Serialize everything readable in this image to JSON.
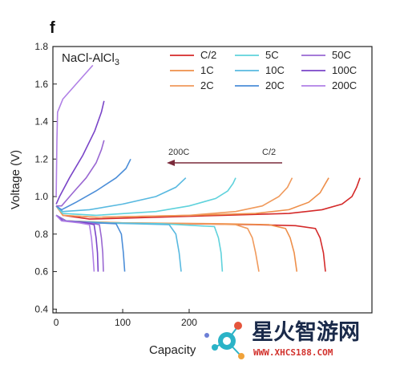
{
  "panel_label": "f",
  "material_label": "NaCl-AlCl",
  "material_sub": "3",
  "chart_data": {
    "type": "line",
    "title": "",
    "xlabel": "Capacity",
    "ylabel": "Voltage (V)",
    "xlim": [
      -5,
      475
    ],
    "ylim": [
      0.38,
      1.8
    ],
    "xticks": [
      0,
      100,
      200
    ],
    "yticks": [
      0.4,
      0.6,
      0.8,
      1.0,
      1.2,
      1.4,
      1.6,
      1.8
    ],
    "legend_position": "top-right",
    "annotation": {
      "from_label": "C/2",
      "to_label": "200C",
      "arrow_y": 1.18
    },
    "series": [
      {
        "name": "C/2",
        "color": "#d42a2a",
        "charge": [
          [
            0,
            0.95
          ],
          [
            10,
            0.9
          ],
          [
            50,
            0.88
          ],
          [
            150,
            0.89
          ],
          [
            250,
            0.9
          ],
          [
            350,
            0.91
          ],
          [
            400,
            0.93
          ],
          [
            430,
            0.96
          ],
          [
            445,
            1.0
          ],
          [
            452,
            1.05
          ],
          [
            457,
            1.1
          ]
        ],
        "discharge": [
          [
            0,
            0.9
          ],
          [
            15,
            0.87
          ],
          [
            80,
            0.86
          ],
          [
            200,
            0.855
          ],
          [
            300,
            0.85
          ],
          [
            360,
            0.845
          ],
          [
            390,
            0.83
          ],
          [
            397,
            0.78
          ],
          [
            402,
            0.7
          ],
          [
            405,
            0.6
          ]
        ]
      },
      {
        "name": "1C",
        "color": "#ee8f4a",
        "charge": [
          [
            0,
            0.95
          ],
          [
            10,
            0.9
          ],
          [
            60,
            0.89
          ],
          [
            200,
            0.9
          ],
          [
            300,
            0.91
          ],
          [
            350,
            0.93
          ],
          [
            380,
            0.97
          ],
          [
            397,
            1.02
          ],
          [
            405,
            1.07
          ],
          [
            410,
            1.1
          ]
        ],
        "discharge": [
          [
            0,
            0.9
          ],
          [
            15,
            0.87
          ],
          [
            100,
            0.86
          ],
          [
            250,
            0.855
          ],
          [
            320,
            0.85
          ],
          [
            345,
            0.83
          ],
          [
            352,
            0.78
          ],
          [
            358,
            0.7
          ],
          [
            362,
            0.6
          ]
        ]
      },
      {
        "name": "2C",
        "color": "#f09a5c",
        "charge": [
          [
            0,
            0.95
          ],
          [
            10,
            0.9
          ],
          [
            60,
            0.89
          ],
          [
            200,
            0.9
          ],
          [
            270,
            0.92
          ],
          [
            310,
            0.95
          ],
          [
            335,
            1.0
          ],
          [
            348,
            1.05
          ],
          [
            355,
            1.1
          ]
        ],
        "discharge": [
          [
            0,
            0.9
          ],
          [
            15,
            0.87
          ],
          [
            100,
            0.86
          ],
          [
            220,
            0.855
          ],
          [
            270,
            0.85
          ],
          [
            288,
            0.83
          ],
          [
            295,
            0.78
          ],
          [
            300,
            0.7
          ],
          [
            305,
            0.6
          ]
        ]
      },
      {
        "name": "5C",
        "color": "#5fd2dc",
        "charge": [
          [
            0,
            0.95
          ],
          [
            10,
            0.91
          ],
          [
            60,
            0.9
          ],
          [
            150,
            0.92
          ],
          [
            200,
            0.95
          ],
          [
            240,
            0.99
          ],
          [
            258,
            1.03
          ],
          [
            266,
            1.07
          ],
          [
            270,
            1.1
          ]
        ],
        "discharge": [
          [
            0,
            0.9
          ],
          [
            15,
            0.87
          ],
          [
            80,
            0.86
          ],
          [
            160,
            0.855
          ],
          [
            238,
            0.84
          ],
          [
            244,
            0.78
          ],
          [
            248,
            0.7
          ],
          [
            250,
            0.6
          ]
        ]
      },
      {
        "name": "10C",
        "color": "#58b9e0",
        "charge": [
          [
            0,
            0.95
          ],
          [
            10,
            0.92
          ],
          [
            50,
            0.93
          ],
          [
            100,
            0.96
          ],
          [
            150,
            1.0
          ],
          [
            180,
            1.05
          ],
          [
            195,
            1.1
          ]
        ],
        "discharge": [
          [
            0,
            0.9
          ],
          [
            15,
            0.87
          ],
          [
            60,
            0.86
          ],
          [
            120,
            0.855
          ],
          [
            170,
            0.85
          ],
          [
            180,
            0.8
          ],
          [
            185,
            0.7
          ],
          [
            188,
            0.6
          ]
        ]
      },
      {
        "name": "20C",
        "color": "#4c8ed8",
        "charge": [
          [
            0,
            0.95
          ],
          [
            8,
            0.93
          ],
          [
            30,
            0.97
          ],
          [
            60,
            1.03
          ],
          [
            90,
            1.1
          ],
          [
            105,
            1.15
          ],
          [
            112,
            1.2
          ]
        ],
        "discharge": [
          [
            0,
            0.9
          ],
          [
            15,
            0.87
          ],
          [
            60,
            0.86
          ],
          [
            90,
            0.855
          ],
          [
            98,
            0.8
          ],
          [
            101,
            0.7
          ],
          [
            103,
            0.6
          ]
        ]
      },
      {
        "name": "50C",
        "color": "#9a68d2",
        "charge": [
          [
            0,
            0.95
          ],
          [
            8,
            0.95
          ],
          [
            25,
            1.02
          ],
          [
            45,
            1.1
          ],
          [
            60,
            1.18
          ],
          [
            68,
            1.25
          ],
          [
            72,
            1.3
          ]
        ],
        "discharge": [
          [
            0,
            0.9
          ],
          [
            15,
            0.87
          ],
          [
            50,
            0.86
          ],
          [
            65,
            0.85
          ],
          [
            68,
            0.78
          ],
          [
            70,
            0.7
          ],
          [
            71,
            0.6
          ]
        ]
      },
      {
        "name": "100C",
        "color": "#7a45c8",
        "charge": [
          [
            0,
            0.96
          ],
          [
            5,
            1.0
          ],
          [
            20,
            1.1
          ],
          [
            40,
            1.22
          ],
          [
            58,
            1.35
          ],
          [
            68,
            1.45
          ],
          [
            72,
            1.51
          ]
        ],
        "discharge": [
          [
            0,
            0.9
          ],
          [
            10,
            0.87
          ],
          [
            45,
            0.86
          ],
          [
            57,
            0.85
          ],
          [
            60,
            0.78
          ],
          [
            62,
            0.7
          ],
          [
            63,
            0.6
          ]
        ]
      },
      {
        "name": "200C",
        "color": "#b080e6",
        "charge": [
          [
            0,
            1.0
          ],
          [
            1,
            1.3
          ],
          [
            2,
            1.45
          ],
          [
            10,
            1.52
          ],
          [
            25,
            1.58
          ],
          [
            40,
            1.64
          ],
          [
            55,
            1.7
          ]
        ],
        "discharge": [
          [
            0,
            0.9
          ],
          [
            8,
            0.87
          ],
          [
            35,
            0.86
          ],
          [
            50,
            0.85
          ],
          [
            53,
            0.78
          ],
          [
            55,
            0.7
          ],
          [
            57,
            0.6
          ]
        ]
      }
    ]
  },
  "watermark": {
    "text": "星火智游网",
    "url": "WWW.XHCS188.COM"
  }
}
